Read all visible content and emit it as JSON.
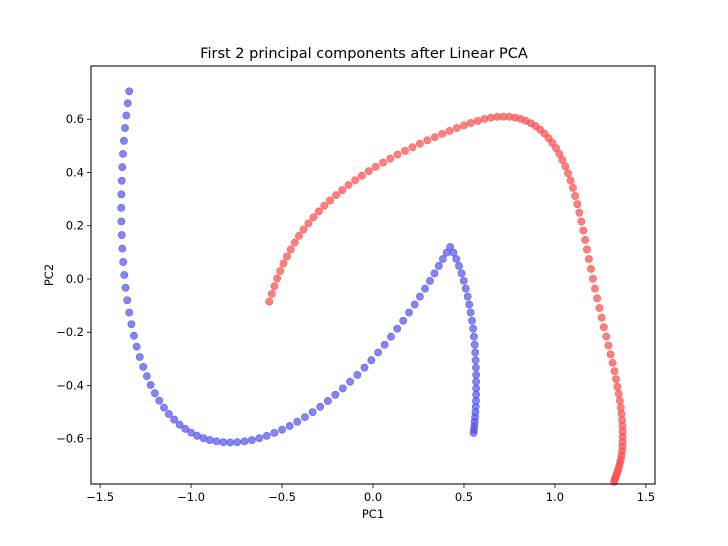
{
  "chart_data": {
    "type": "scatter",
    "title": "First 2 principal components after Linear PCA",
    "xlabel": "PC1",
    "ylabel": "PC2",
    "xlim": [
      -1.55,
      1.55
    ],
    "ylim": [
      -0.77,
      0.8
    ],
    "xticks": [
      -1.5,
      -1.0,
      -0.5,
      0.0,
      0.5,
      1.0,
      1.5
    ],
    "xtick_labels": [
      "−1.5",
      "−1.0",
      "−0.5",
      "0.0",
      "0.5",
      "1.0",
      "1.5"
    ],
    "yticks": [
      -0.6,
      -0.4,
      -0.2,
      0.0,
      0.2,
      0.4,
      0.6
    ],
    "ytick_labels": [
      "−0.6",
      "−0.4",
      "−0.2",
      "0.0",
      "0.2",
      "0.4",
      "0.6"
    ],
    "grid": false,
    "series": [
      {
        "color": "#ff4d4d",
        "x": [
          -0.57,
          -0.556,
          -0.542,
          -0.527,
          -0.51,
          -0.492,
          -0.473,
          -0.452,
          -0.43,
          -0.407,
          -0.382,
          -0.355,
          -0.327,
          -0.298,
          -0.268,
          -0.236,
          -0.203,
          -0.169,
          -0.134,
          -0.098,
          -0.061,
          -0.023,
          0.015,
          0.055,
          0.095,
          0.135,
          0.176,
          0.217,
          0.258,
          0.299,
          0.34,
          0.381,
          0.421,
          0.461,
          0.5,
          0.538,
          0.576,
          0.613,
          0.648,
          0.683,
          0.717,
          0.749,
          0.781,
          0.811,
          0.84,
          0.868,
          0.894,
          0.919,
          0.943,
          0.965,
          0.986,
          1.006,
          1.024,
          1.041,
          1.057,
          1.072,
          1.086,
          1.099,
          1.111,
          1.123,
          1.134,
          1.145,
          1.156,
          1.166,
          1.176,
          1.187,
          1.198,
          1.209,
          1.22,
          1.232,
          1.244,
          1.257,
          1.269,
          1.282,
          1.294,
          1.306,
          1.317,
          1.327,
          1.336,
          1.344,
          1.351,
          1.357,
          1.362,
          1.366,
          1.369,
          1.371,
          1.372,
          1.372,
          1.372,
          1.371,
          1.369,
          1.366,
          1.362,
          1.357,
          1.352,
          1.347,
          1.342,
          1.337,
          1.332,
          1.328,
          1.325
        ],
        "y": [
          -0.085,
          -0.056,
          -0.027,
          0.002,
          0.03,
          0.058,
          0.085,
          0.111,
          0.137,
          0.162,
          0.186,
          0.209,
          0.232,
          0.254,
          0.275,
          0.295,
          0.315,
          0.334,
          0.353,
          0.371,
          0.388,
          0.405,
          0.421,
          0.437,
          0.452,
          0.467,
          0.481,
          0.495,
          0.508,
          0.521,
          0.533,
          0.545,
          0.556,
          0.567,
          0.577,
          0.586,
          0.594,
          0.601,
          0.606,
          0.609,
          0.61,
          0.609,
          0.606,
          0.601,
          0.594,
          0.585,
          0.574,
          0.561,
          0.546,
          0.529,
          0.511,
          0.491,
          0.47,
          0.447,
          0.423,
          0.397,
          0.37,
          0.342,
          0.312,
          0.281,
          0.249,
          0.216,
          0.182,
          0.147,
          0.111,
          0.075,
          0.038,
          0.001,
          -0.036,
          -0.073,
          -0.109,
          -0.145,
          -0.181,
          -0.216,
          -0.25,
          -0.283,
          -0.315,
          -0.346,
          -0.376,
          -0.405,
          -0.432,
          -0.458,
          -0.483,
          -0.507,
          -0.53,
          -0.552,
          -0.573,
          -0.593,
          -0.612,
          -0.63,
          -0.647,
          -0.663,
          -0.678,
          -0.692,
          -0.705,
          -0.717,
          -0.728,
          -0.738,
          -0.747,
          -0.755,
          -0.762
        ]
      },
      {
        "color": "#5555ee",
        "x": [
          -1.34,
          -1.348,
          -1.356,
          -1.363,
          -1.369,
          -1.374,
          -1.378,
          -1.381,
          -1.383,
          -1.384,
          -1.383,
          -1.381,
          -1.378,
          -1.373,
          -1.367,
          -1.36,
          -1.351,
          -1.34,
          -1.328,
          -1.314,
          -1.299,
          -1.282,
          -1.263,
          -1.243,
          -1.222,
          -1.199,
          -1.175,
          -1.149,
          -1.122,
          -1.093,
          -1.063,
          -1.032,
          -1.0,
          -0.967,
          -0.932,
          -0.897,
          -0.86,
          -0.823,
          -0.785,
          -0.746,
          -0.706,
          -0.666,
          -0.625,
          -0.584,
          -0.542,
          -0.5,
          -0.458,
          -0.416,
          -0.374,
          -0.332,
          -0.29,
          -0.248,
          -0.207,
          -0.166,
          -0.126,
          -0.086,
          -0.047,
          -0.009,
          0.028,
          0.064,
          0.099,
          0.133,
          0.166,
          0.198,
          0.229,
          0.258,
          0.286,
          0.313,
          0.338,
          0.362,
          0.384,
          0.405,
          0.424,
          0.442,
          0.458,
          0.473,
          0.487,
          0.499,
          0.51,
          0.52,
          0.529,
          0.537,
          0.544,
          0.55,
          0.555,
          0.559,
          0.562,
          0.564,
          0.566,
          0.567,
          0.567,
          0.567,
          0.567,
          0.566,
          0.565,
          0.563,
          0.561,
          0.559,
          0.557,
          0.555,
          0.553
        ],
        "y": [
          0.705,
          0.66,
          0.614,
          0.567,
          0.519,
          0.47,
          0.42,
          0.369,
          0.318,
          0.267,
          0.216,
          0.165,
          0.114,
          0.064,
          0.015,
          -0.033,
          -0.08,
          -0.126,
          -0.17,
          -0.213,
          -0.254,
          -0.293,
          -0.33,
          -0.365,
          -0.398,
          -0.429,
          -0.457,
          -0.483,
          -0.507,
          -0.528,
          -0.547,
          -0.563,
          -0.577,
          -0.589,
          -0.598,
          -0.605,
          -0.61,
          -0.613,
          -0.614,
          -0.613,
          -0.61,
          -0.605,
          -0.598,
          -0.589,
          -0.578,
          -0.566,
          -0.552,
          -0.536,
          -0.519,
          -0.5,
          -0.48,
          -0.458,
          -0.435,
          -0.411,
          -0.386,
          -0.36,
          -0.333,
          -0.305,
          -0.276,
          -0.247,
          -0.217,
          -0.187,
          -0.157,
          -0.126,
          -0.096,
          -0.066,
          -0.036,
          -0.007,
          0.021,
          0.049,
          0.075,
          0.099,
          0.12,
          0.099,
          0.075,
          0.049,
          0.021,
          -0.007,
          -0.036,
          -0.066,
          -0.096,
          -0.126,
          -0.157,
          -0.187,
          -0.217,
          -0.247,
          -0.276,
          -0.305,
          -0.333,
          -0.36,
          -0.386,
          -0.411,
          -0.435,
          -0.458,
          -0.48,
          -0.5,
          -0.519,
          -0.536,
          -0.552,
          -0.566,
          -0.578
        ]
      }
    ]
  }
}
